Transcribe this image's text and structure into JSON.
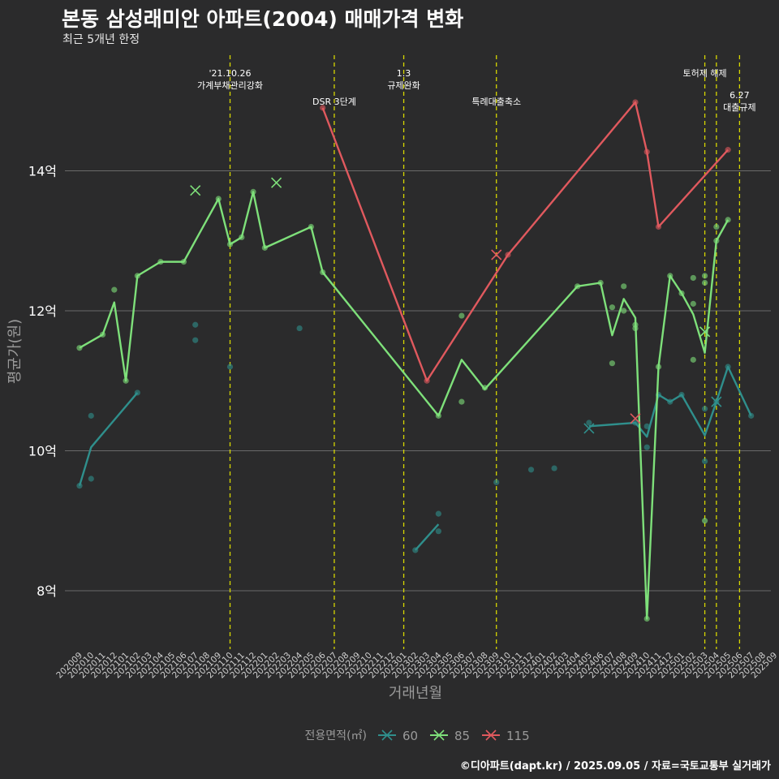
{
  "title": "본동 삼성래미안 아파트(2004) 매매가격 변화",
  "subtitle": "최근 5개년 한정",
  "caption": "©디아파트(dapt.kr) / 2025.09.05 / 자료=국토교통부 실거래가",
  "colors": {
    "background": "#2b2b2c",
    "grid": "#6a6a6a",
    "vline": "#d7d700",
    "s60": "#2f8f8c",
    "s85": "#7ee07a",
    "s115": "#e0595e",
    "axis_text": "#9a9a9a"
  },
  "chart_data": {
    "type": "line",
    "title": "본동 삼성래미안 아파트(2004) 매매가격 변화",
    "subtitle": "최근 5개년 한정",
    "xlabel": "거래년월",
    "ylabel": "평균가(원)",
    "legend_title": "전용면적(㎡)",
    "legend_position": "bottom",
    "grid": true,
    "ylim": [
      7.3,
      15.6
    ],
    "yticks": [
      8,
      10,
      12,
      14
    ],
    "ytick_labels": [
      "8억",
      "10억",
      "12억",
      "14억"
    ],
    "categories": [
      "202009",
      "202010",
      "202011",
      "202012",
      "202101",
      "202102",
      "202103",
      "202104",
      "202105",
      "202106",
      "202107",
      "202108",
      "202109",
      "202110",
      "202111",
      "202112",
      "202201",
      "202202",
      "202203",
      "202204",
      "202205",
      "202206",
      "202207",
      "202208",
      "202209",
      "202210",
      "202211",
      "202212",
      "202301",
      "202302",
      "202303",
      "202304",
      "202305",
      "202306",
      "202307",
      "202308",
      "202309",
      "202310",
      "202311",
      "202312",
      "202401",
      "202402",
      "202403",
      "202404",
      "202405",
      "202406",
      "202407",
      "202408",
      "202409",
      "202410",
      "202411",
      "202412",
      "202501",
      "202502",
      "202503",
      "202504",
      "202505",
      "202506",
      "202507",
      "202508",
      "202509"
    ],
    "annotations": [
      {
        "x": 13,
        "lines": [
          "'21.10.26",
          "가계부채관리강화"
        ],
        "row": 0
      },
      {
        "x": 22,
        "lines": [
          "DSR 3단계"
        ],
        "row": 1
      },
      {
        "x": 28,
        "lines": [
          "1.3",
          "규제완화"
        ],
        "row": 0
      },
      {
        "x": 36,
        "lines": [
          "특례대출축소"
        ],
        "row": 1
      },
      {
        "x": 54,
        "lines": [
          "토허제 해제"
        ],
        "row": 0
      },
      {
        "x": 55,
        "lines": [],
        "row": 0
      },
      {
        "x": 57,
        "lines": [
          "6.27",
          "대출규제"
        ],
        "row": 2
      }
    ],
    "series": [
      {
        "name": "60",
        "line": [
          [
            0,
            9.5
          ],
          [
            1,
            10.05
          ],
          [
            5,
            10.83
          ],
          null,
          [
            29,
            8.58
          ],
          [
            31,
            8.95
          ],
          null,
          [
            44,
            10.35
          ],
          [
            48,
            10.4
          ],
          [
            49,
            10.2
          ],
          [
            50,
            10.8
          ],
          [
            51,
            10.7
          ],
          [
            52,
            10.8
          ],
          [
            54,
            10.22
          ],
          [
            55,
            10.7
          ],
          [
            56,
            11.2
          ],
          [
            58,
            10.5
          ]
        ],
        "points": [
          [
            0,
            9.5
          ],
          [
            1,
            10.5
          ],
          [
            1,
            9.6
          ],
          [
            5,
            10.83
          ],
          [
            10,
            11.8
          ],
          [
            10,
            11.58
          ],
          [
            13,
            11.2
          ],
          [
            19,
            11.75
          ],
          [
            29,
            8.58
          ],
          [
            31,
            9.1
          ],
          [
            31,
            8.85
          ],
          [
            36,
            9.55
          ],
          [
            39,
            9.73
          ],
          [
            41,
            9.75
          ],
          [
            44,
            10.4
          ],
          [
            48,
            10.4
          ],
          [
            49,
            10.35
          ],
          [
            49,
            10.05
          ],
          [
            50,
            10.8
          ],
          [
            51,
            10.7
          ],
          [
            52,
            10.8
          ],
          [
            54,
            10.6
          ],
          [
            54,
            9.85
          ],
          [
            55,
            10.7
          ],
          [
            56,
            11.2
          ],
          [
            58,
            10.5
          ]
        ],
        "crosses": [
          [
            44,
            10.32
          ],
          [
            55,
            10.7
          ]
        ]
      },
      {
        "name": "85",
        "line": [
          [
            0,
            11.47
          ],
          [
            2,
            11.66
          ],
          [
            3,
            12.12
          ],
          [
            4,
            11.0
          ],
          [
            5,
            12.5
          ],
          [
            7,
            12.7
          ],
          [
            9,
            12.7
          ],
          [
            12,
            13.6
          ],
          [
            13,
            12.95
          ],
          [
            14,
            13.05
          ],
          [
            15,
            13.7
          ],
          [
            16,
            12.9
          ],
          [
            20,
            13.2
          ],
          [
            21,
            12.55
          ],
          [
            31,
            10.5
          ],
          [
            33,
            11.3
          ],
          [
            35,
            10.88
          ],
          [
            43,
            12.35
          ],
          [
            45,
            12.4
          ],
          [
            46,
            11.65
          ],
          [
            47,
            12.17
          ],
          [
            48,
            11.9
          ],
          [
            49,
            7.6
          ],
          [
            50,
            11.2
          ],
          [
            51,
            12.5
          ],
          [
            52,
            12.25
          ],
          [
            53,
            11.95
          ],
          [
            54,
            11.4
          ],
          [
            55,
            13.0
          ],
          [
            56,
            13.3
          ]
        ],
        "points": [
          [
            0,
            11.47
          ],
          [
            2,
            11.66
          ],
          [
            3,
            12.3
          ],
          [
            4,
            11.0
          ],
          [
            5,
            12.5
          ],
          [
            7,
            12.7
          ],
          [
            9,
            12.7
          ],
          [
            12,
            13.6
          ],
          [
            13,
            12.95
          ],
          [
            14,
            13.05
          ],
          [
            15,
            13.7
          ],
          [
            16,
            12.9
          ],
          [
            20,
            13.2
          ],
          [
            21,
            12.55
          ],
          [
            31,
            10.5
          ],
          [
            33,
            11.93
          ],
          [
            33,
            10.7
          ],
          [
            35,
            10.9
          ],
          [
            43,
            12.35
          ],
          [
            45,
            12.4
          ],
          [
            46,
            12.05
          ],
          [
            46,
            11.25
          ],
          [
            47,
            12.35
          ],
          [
            47,
            12.0
          ],
          [
            48,
            11.8
          ],
          [
            48,
            11.75
          ],
          [
            49,
            7.6
          ],
          [
            50,
            11.2
          ],
          [
            51,
            12.5
          ],
          [
            52,
            12.25
          ],
          [
            53,
            12.47
          ],
          [
            53,
            12.1
          ],
          [
            53,
            11.3
          ],
          [
            54,
            12.5
          ],
          [
            54,
            12.4
          ],
          [
            54,
            9.0
          ],
          [
            55,
            13.0
          ],
          [
            55,
            13.2
          ],
          [
            56,
            13.3
          ]
        ],
        "crosses": [
          [
            10,
            13.72
          ],
          [
            17,
            13.83
          ],
          [
            54,
            11.7
          ]
        ]
      },
      {
        "name": "115",
        "line": [
          [
            21,
            14.9
          ],
          [
            30,
            11.0
          ],
          [
            37,
            12.8
          ],
          [
            48,
            14.98
          ],
          [
            49,
            14.27
          ],
          [
            50,
            13.2
          ],
          [
            56,
            14.3
          ]
        ],
        "points": [
          [
            21,
            14.9
          ],
          [
            30,
            11.0
          ],
          [
            37,
            12.8
          ],
          [
            48,
            14.98
          ],
          [
            49,
            14.27
          ],
          [
            50,
            13.2
          ],
          [
            56,
            14.3
          ]
        ],
        "crosses": [
          [
            36,
            12.8
          ],
          [
            48,
            10.46
          ]
        ]
      }
    ]
  }
}
